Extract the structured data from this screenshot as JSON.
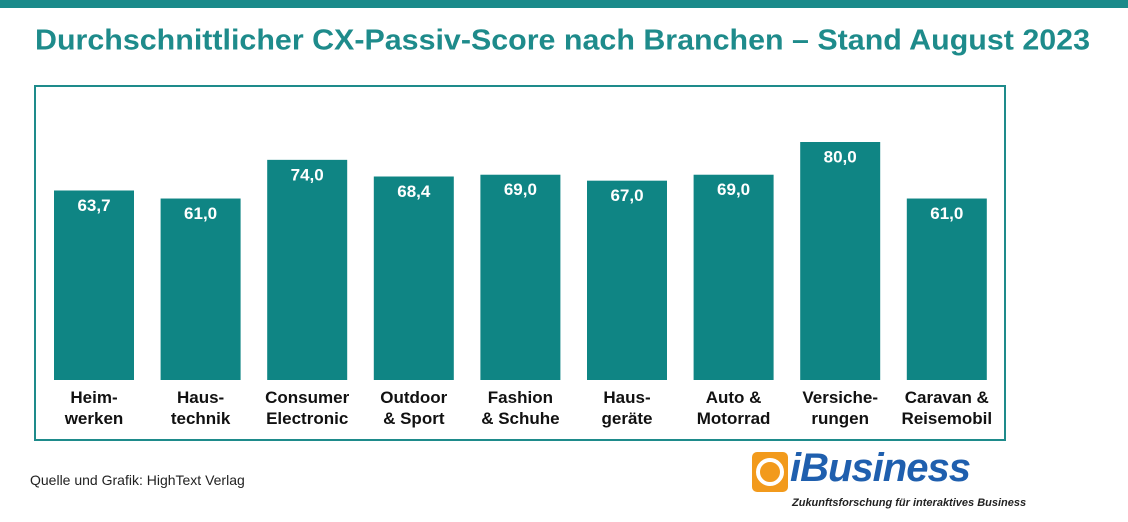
{
  "chart_data": {
    "type": "bar",
    "title": "Durchschnittlicher CX-Passiv-Score nach Branchen – Stand August 2023",
    "categories": [
      "Heim-\nwerken",
      "Haus-\ntechnik",
      "Consumer\nElectronic",
      "Outdoor\n& Sport",
      "Fashion\n& Schuhe",
      "Haus-\ngeräte",
      "Auto &\nMotorrad",
      "Versiche-\nrungen",
      "Caravan &\nReisemobil"
    ],
    "values": [
      63.7,
      61.0,
      74.0,
      68.4,
      69.0,
      67.0,
      69.0,
      80.0,
      61.0
    ],
    "value_labels": [
      "63,7",
      "61,0",
      "74,0",
      "68,4",
      "69,0",
      "67,0",
      "69,0",
      "80,0",
      "61,0"
    ],
    "color": "#0f8584",
    "source": "Quelle und Grafik: HighText Verlag"
  },
  "logo": {
    "name": "iBusiness",
    "tagline": "Zukunftsforschung für interaktives Business"
  }
}
